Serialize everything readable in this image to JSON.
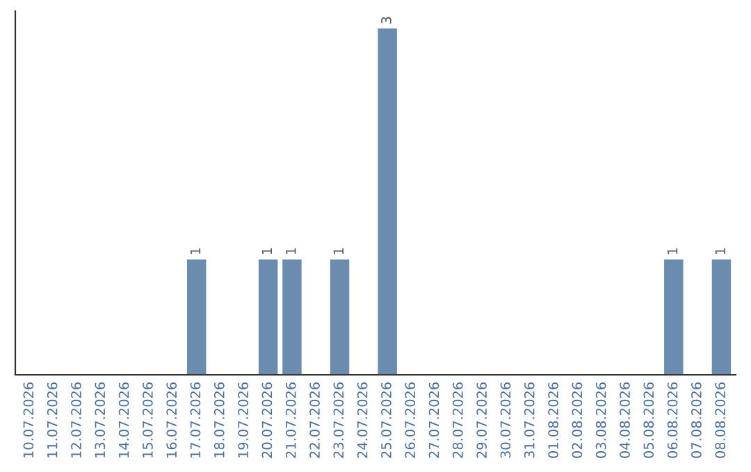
{
  "chart_data": {
    "type": "bar",
    "categories": [
      "10.07.2026",
      "11.07.2026",
      "12.07.2026",
      "13.07.2026",
      "14.07.2026",
      "15.07.2026",
      "16.07.2026",
      "17.07.2026",
      "18.07.2026",
      "19.07.2026",
      "20.07.2026",
      "21.07.2026",
      "22.07.2026",
      "23.07.2026",
      "24.07.2026",
      "25.07.2026",
      "26.07.2026",
      "27.07.2026",
      "28.07.2026",
      "29.07.2026",
      "30.07.2026",
      "31.07.2026",
      "01.08.2026",
      "02.08.2026",
      "03.08.2026",
      "04.08.2026",
      "05.08.2026",
      "06.08.2026",
      "07.08.2026",
      "08.08.2026"
    ],
    "values": [
      0,
      0,
      0,
      0,
      0,
      0,
      0,
      1,
      0,
      0,
      1,
      1,
      0,
      1,
      0,
      3,
      0,
      0,
      0,
      0,
      0,
      0,
      0,
      0,
      0,
      0,
      0,
      1,
      0,
      1
    ],
    "value_labels": [
      null,
      null,
      null,
      null,
      null,
      null,
      null,
      "1",
      null,
      null,
      "1",
      "1",
      null,
      "1",
      null,
      "3",
      null,
      null,
      null,
      null,
      null,
      null,
      null,
      null,
      null,
      null,
      null,
      "1",
      null,
      "1"
    ],
    "color": "#6b8cae",
    "tick_labels": "x",
    "grid": false,
    "legend": false
  }
}
